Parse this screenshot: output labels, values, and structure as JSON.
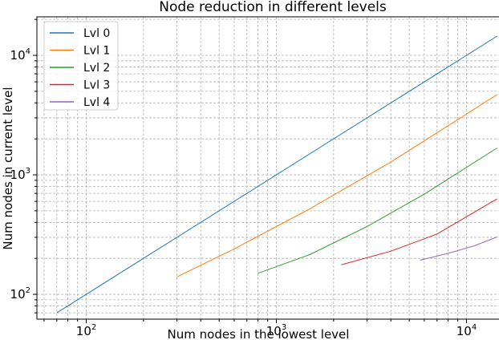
{
  "chart_data": {
    "type": "line",
    "title": "Node reduction in different levels",
    "xlabel": "Num nodes in the lowest level",
    "ylabel": "Num nodes in current level",
    "xscale": "log",
    "yscale": "log",
    "xlim": [
      55,
      16500
    ],
    "ylim": [
      62,
      21000
    ],
    "grid": "both major and minor, dashed",
    "legend_position": "top-left",
    "x_ticks": [
      {
        "base": "10",
        "exp": "2",
        "value": 100
      },
      {
        "base": "10",
        "exp": "3",
        "value": 1000
      },
      {
        "base": "10",
        "exp": "4",
        "value": 10000
      }
    ],
    "y_ticks": [
      {
        "base": "10",
        "exp": "2",
        "value": 100
      },
      {
        "base": "10",
        "exp": "3",
        "value": 1000
      },
      {
        "base": "10",
        "exp": "4",
        "value": 10000
      }
    ],
    "series": [
      {
        "name": "Lvl 0",
        "color": "#1f77b4",
        "x": [
          70,
          14500
        ],
        "y": [
          70,
          14500
        ]
      },
      {
        "name": "Lvl 1",
        "color": "#ff7f0e",
        "x": [
          300,
          600,
          1500,
          4000,
          14500
        ],
        "y": [
          140,
          240,
          520,
          1280,
          4700
        ]
      },
      {
        "name": "Lvl 2",
        "color": "#2ca02c",
        "x": [
          800,
          1500,
          3000,
          6000,
          14500
        ],
        "y": [
          150,
          215,
          370,
          690,
          1680
        ]
      },
      {
        "name": "Lvl 3",
        "color": "#d62728",
        "x": [
          2200,
          4000,
          7000,
          14500
        ],
        "y": [
          177,
          230,
          320,
          630
        ]
      },
      {
        "name": "Lvl 4",
        "color": "#9467bd",
        "x": [
          5700,
          8000,
          11000,
          14500
        ],
        "y": [
          193,
          220,
          255,
          302
        ]
      }
    ]
  }
}
